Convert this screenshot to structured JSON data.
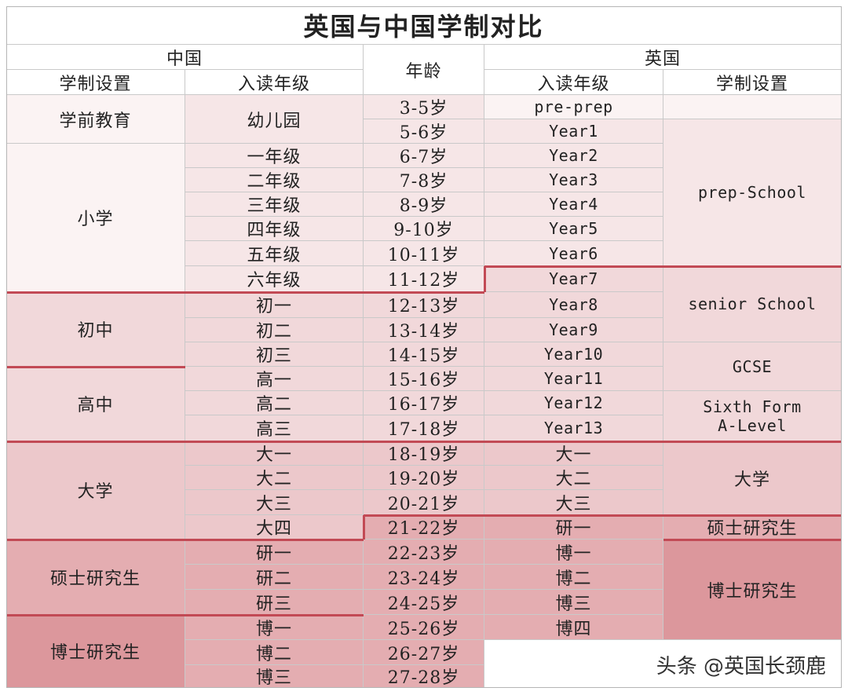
{
  "title": "英国与中国学制对比",
  "headers": {
    "china": "中国",
    "age": "年龄",
    "uk": "英国",
    "cn_system": "学制设置",
    "cn_grade": "入读年级",
    "uk_grade": "入读年级",
    "uk_system": "学制设置"
  },
  "china_stages": [
    "学前教育",
    "小学",
    "初中",
    "高中",
    "大学",
    "硕士研究生",
    "博士研究生"
  ],
  "china_grades": [
    "幼儿园",
    "一年级",
    "二年级",
    "三年级",
    "四年级",
    "五年级",
    "六年级",
    "初一",
    "初二",
    "初三",
    "高一",
    "高二",
    "高三",
    "大一",
    "大二",
    "大三",
    "大四",
    "研一",
    "研二",
    "研三",
    "博一",
    "博二",
    "博三"
  ],
  "ages": [
    "3-5岁",
    "5-6岁",
    "6-7岁",
    "7-8岁",
    "8-9岁",
    "9-10岁",
    "10-11岁",
    "11-12岁",
    "12-13岁",
    "13-14岁",
    "14-15岁",
    "15-16岁",
    "16-17岁",
    "17-18岁",
    "18-19岁",
    "19-20岁",
    "20-21岁",
    "21-22岁",
    "22-23岁",
    "23-24岁",
    "24-25岁",
    "25-26岁",
    "26-27岁",
    "27-28岁"
  ],
  "uk_grades": [
    "pre-prep",
    "Year1",
    "Year2",
    "Year3",
    "Year4",
    "Year5",
    "Year6",
    "Year7",
    "Year8",
    "Year9",
    "Year10",
    "Year11",
    "Year12",
    "Year13",
    "大一",
    "大二",
    "大三",
    "研一",
    "博一",
    "博二",
    "博三",
    "博四"
  ],
  "uk_systems": [
    "",
    "prep-School",
    "senior School",
    "GCSE",
    "Sixth Form\nA-Level",
    "大学",
    "硕士研究生",
    "博士研究生"
  ],
  "watermark": "头条 @英国长颈鹿",
  "colors": {
    "accent_line": "#c24a55",
    "band1": "#fbf3f3",
    "band2": "#f6e6e7",
    "band3": "#f1d8da",
    "band4": "#ecc8cb",
    "band5": "#e4adb1",
    "band6": "#dc979c"
  }
}
